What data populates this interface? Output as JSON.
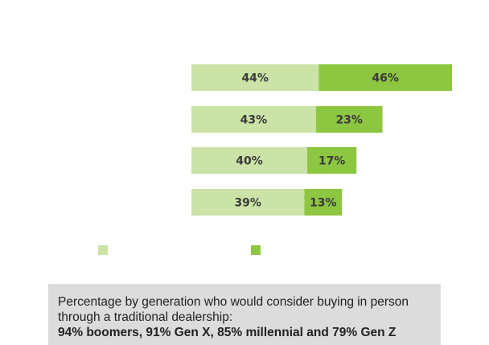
{
  "colors": {
    "light_segment": "#cbe3a6",
    "dark_segment": "#8dc640",
    "label_text": "#3a3a3a",
    "caption_bg": "#dcdcdc"
  },
  "chart_data": {
    "type": "bar",
    "orientation": "horizontal",
    "stacked": true,
    "categories": [
      "",
      "",
      "",
      ""
    ],
    "series": [
      {
        "color": "#cbe3a6",
        "values": [
          44,
          43,
          40,
          39
        ],
        "labels": [
          "44%",
          "43%",
          "40%",
          "39%"
        ]
      },
      {
        "color": "#8dc640",
        "values": [
          46,
          23,
          17,
          13
        ],
        "labels": [
          "46%",
          "23%",
          "17%",
          "13%"
        ]
      }
    ],
    "legend": {
      "placement": "bottom",
      "swatches": [
        "#cbe3a6",
        "#8dc640"
      ]
    },
    "grid": false
  },
  "caption": {
    "line1": "Percentage by generation who would consider buying in person",
    "line2": "through a traditional dealership:",
    "line3": "94% boomers, 91% Gen X, 85% millennial and 79% Gen Z"
  }
}
